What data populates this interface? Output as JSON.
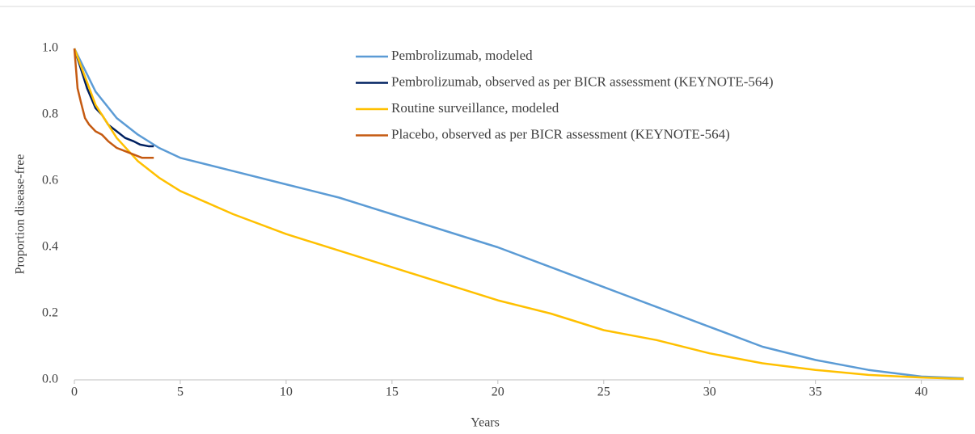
{
  "chart_data": {
    "type": "line",
    "x_label": "Years",
    "y_label": "Proportion disease-free",
    "xlim": [
      0,
      42
    ],
    "xticks": [
      0,
      5,
      10,
      15,
      20,
      25,
      30,
      35,
      40
    ],
    "ylim": [
      0,
      1
    ],
    "yticks": [
      {
        "value": 0,
        "label": "0.0"
      },
      0.2,
      0.4,
      0.6,
      0.8,
      {
        "value": 1,
        "label": "1.0"
      }
    ],
    "grid": false,
    "legend": "top",
    "series": [
      {
        "name": "Pembrolizumab, modeled",
        "color": "#5b9bd5",
        "x": [
          0,
          1,
          2,
          3,
          4,
          5,
          7.5,
          10,
          12.5,
          15,
          17.5,
          20,
          22.5,
          25,
          27.5,
          30,
          32.5,
          35,
          37.5,
          40,
          42
        ],
        "values": [
          1.0,
          0.87,
          0.79,
          0.74,
          0.7,
          0.67,
          0.63,
          0.59,
          0.55,
          0.5,
          0.45,
          0.4,
          0.34,
          0.28,
          0.22,
          0.16,
          0.1,
          0.06,
          0.03,
          0.01,
          0.005
        ]
      },
      {
        "name": "Pembrolizumab, observed as per BICR assessment (KEYNOTE-564)",
        "color": "#002060",
        "x": [
          0,
          0.2,
          0.4,
          0.6,
          0.8,
          1.0,
          1.3,
          1.6,
          2.0,
          2.4,
          2.8,
          3.1,
          3.5,
          3.75
        ],
        "values": [
          1.0,
          0.96,
          0.92,
          0.88,
          0.85,
          0.82,
          0.8,
          0.77,
          0.75,
          0.73,
          0.72,
          0.71,
          0.705,
          0.705
        ]
      },
      {
        "name": "Routine surveillance, modeled",
        "color": "#ffc000",
        "x": [
          0,
          1,
          2,
          3,
          4,
          5,
          7.5,
          10,
          12.5,
          15,
          17.5,
          20,
          22.5,
          25,
          27.5,
          30,
          32.5,
          35,
          37.5,
          40,
          42
        ],
        "values": [
          1.0,
          0.83,
          0.73,
          0.66,
          0.61,
          0.57,
          0.5,
          0.44,
          0.39,
          0.34,
          0.29,
          0.24,
          0.2,
          0.15,
          0.12,
          0.08,
          0.05,
          0.03,
          0.015,
          0.007,
          0.003
        ]
      },
      {
        "name": "Placebo, observed as per BICR assessment (KEYNOTE-564)",
        "color": "#c55a11",
        "x": [
          0,
          0.15,
          0.3,
          0.5,
          0.7,
          1.0,
          1.3,
          1.6,
          2.0,
          2.4,
          2.8,
          3.2,
          3.75
        ],
        "values": [
          1.0,
          0.88,
          0.84,
          0.79,
          0.77,
          0.75,
          0.74,
          0.72,
          0.7,
          0.69,
          0.68,
          0.67,
          0.67
        ]
      }
    ]
  }
}
